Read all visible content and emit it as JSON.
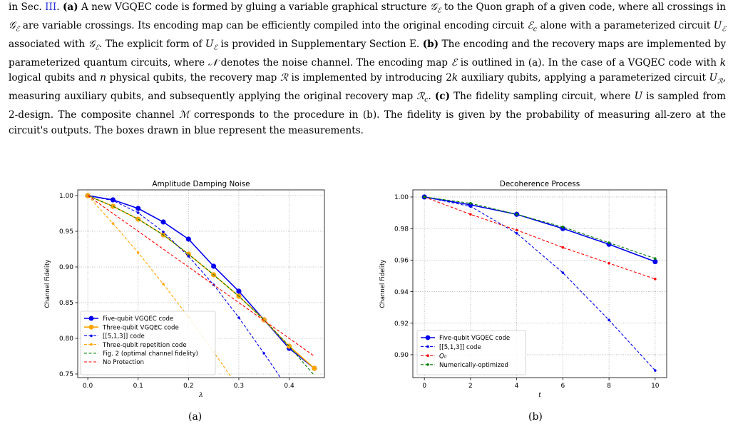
{
  "caption": {
    "segments": [
      {
        "t": "in Sec. "
      },
      {
        "t": "III",
        "ref": true
      },
      {
        "t": ". "
      },
      {
        "t": "(a)",
        "b": true
      },
      {
        "t": " A new VGQEC code is formed by gluing a variable graphical structure "
      },
      {
        "t": "𝒢",
        "i": true
      },
      {
        "t": "ℰ",
        "sub": true
      },
      {
        "t": " to the Quon graph of a given code, where all crossings in "
      },
      {
        "t": "𝒢",
        "i": true
      },
      {
        "t": "ℰ",
        "sub": true
      },
      {
        "t": " are variable crossings. Its encoding map can be efficiently compiled into the original encoding circuit "
      },
      {
        "t": "ℰ",
        "i": true
      },
      {
        "t": "c",
        "sub": true
      },
      {
        "t": " alone with a parameterized circuit "
      },
      {
        "t": "U",
        "i": true
      },
      {
        "t": "ℰ",
        "sub": true
      },
      {
        "t": " associated with "
      },
      {
        "t": "𝒢",
        "i": true
      },
      {
        "t": "ℰ",
        "sub": true
      },
      {
        "t": ". The explicit form of "
      },
      {
        "t": "U",
        "i": true
      },
      {
        "t": "ℰ",
        "sub": true
      },
      {
        "t": " is provided in Supplementary Section E. "
      },
      {
        "t": "(b)",
        "b": true
      },
      {
        "t": " The encoding and the recovery maps are implemented by parameterized quantum circuits, where "
      },
      {
        "t": "𝒩",
        "i": true
      },
      {
        "t": " denotes the noise channel. The encoding map "
      },
      {
        "t": "ℰ",
        "i": true
      },
      {
        "t": " is outlined in (a). In the case of a VGQEC code with "
      },
      {
        "t": "k",
        "i": true
      },
      {
        "t": " logical qubits and "
      },
      {
        "t": "n",
        "i": true
      },
      {
        "t": " physical qubits, the recovery map "
      },
      {
        "t": "ℛ",
        "i": true
      },
      {
        "t": " is implemented by introducing 2"
      },
      {
        "t": "k",
        "i": true
      },
      {
        "t": " auxiliary qubits, applying a parameterized circuit "
      },
      {
        "t": "U",
        "i": true
      },
      {
        "t": "ℛ",
        "sub": true
      },
      {
        "t": ", measuring auxiliary qubits, and subsequently applying the original recovery map "
      },
      {
        "t": "ℛ",
        "i": true
      },
      {
        "t": "c",
        "sub": true
      },
      {
        "t": ". "
      },
      {
        "t": "(c)",
        "b": true
      },
      {
        "t": " The fidelity sampling circuit, where "
      },
      {
        "t": "U",
        "i": true
      },
      {
        "t": " is sampled from 2-design. The composite channel "
      },
      {
        "t": "ℳ",
        "i": true
      },
      {
        "t": " corresponds to the procedure in (b). The fidelity is given by the probability of measuring all-zero at the circuit's outputs. The boxes drawn in blue represent the measurements."
      }
    ]
  },
  "colors": {
    "blue": "#0000ee",
    "orange": "#ffa500",
    "green": "#008000",
    "red": "#ff0000",
    "grid": "#b0b0b0",
    "ref": "#2a33d8"
  },
  "chart_data": [
    {
      "type": "line",
      "title": "Amplitude Damping Noise",
      "xlabel": "λ",
      "ylabel": "Channel Fidelity",
      "xlim": [
        -0.02,
        0.47
      ],
      "ylim": [
        0.745,
        1.008
      ],
      "xticks": [
        0.0,
        0.1,
        0.2,
        0.3,
        0.4
      ],
      "xtick_labels": [
        "0.0",
        "0.1",
        "0.2",
        "0.3",
        "0.4"
      ],
      "yticks": [
        0.75,
        0.8,
        0.85,
        0.9,
        0.95,
        1.0
      ],
      "ytick_labels": [
        "0.75",
        "0.80",
        "0.85",
        "0.90",
        "0.95",
        "1.00"
      ],
      "grid": true,
      "legend": "lower-left",
      "sub_label": "(a)",
      "series": [
        {
          "name": "Five-qubit VGQEC code",
          "color": "blue",
          "style": "solid",
          "marker": "big",
          "x": [
            0,
            0.05,
            0.1,
            0.15,
            0.2,
            0.25,
            0.3,
            0.35,
            0.4,
            0.45
          ],
          "y": [
            1.0,
            0.994,
            0.982,
            0.963,
            0.939,
            0.901,
            0.866,
            0.826,
            0.786,
            0.758
          ]
        },
        {
          "name": "Three-qubit VGQEC code",
          "color": "orange",
          "style": "solid",
          "marker": "big",
          "x": [
            0,
            0.05,
            0.1,
            0.15,
            0.2,
            0.25,
            0.3,
            0.35,
            0.4,
            0.45
          ],
          "y": [
            1.0,
            0.985,
            0.967,
            0.945,
            0.918,
            0.889,
            0.859,
            0.826,
            0.789,
            0.758
          ]
        },
        {
          "name": "[[5,1,3]] code",
          "color": "blue",
          "style": "dashed",
          "marker": "small",
          "x": [
            0,
            0.05,
            0.1,
            0.15,
            0.2,
            0.25,
            0.3,
            0.35,
            0.4,
            0.45
          ],
          "y": [
            1.0,
            0.993,
            0.976,
            0.949,
            0.915,
            0.875,
            0.829,
            0.779,
            0.727,
            0.67
          ]
        },
        {
          "name": "Three-qubit repetition code",
          "color": "orange",
          "style": "dashed",
          "marker": "small",
          "x": [
            0,
            0.05,
            0.1,
            0.15,
            0.2,
            0.25,
            0.3
          ],
          "y": [
            1.0,
            0.961,
            0.92,
            0.876,
            0.83,
            0.781,
            0.73
          ]
        },
        {
          "name": "Fig. 2 (optimal channel fidelity)",
          "color": "green",
          "style": "dashed",
          "marker": "none",
          "x": [
            0,
            0.05,
            0.1,
            0.15,
            0.2,
            0.25,
            0.3,
            0.35,
            0.4,
            0.45
          ],
          "y": [
            1.0,
            0.985,
            0.967,
            0.945,
            0.918,
            0.889,
            0.859,
            0.826,
            0.789,
            0.748
          ]
        },
        {
          "name": "No Protection",
          "color": "red",
          "style": "dashed",
          "marker": "none",
          "x": [
            0,
            0.05,
            0.1,
            0.15,
            0.2,
            0.25,
            0.3,
            0.35,
            0.4,
            0.45
          ],
          "y": [
            1.0,
            0.975,
            0.95,
            0.925,
            0.9,
            0.875,
            0.85,
            0.825,
            0.8,
            0.775
          ]
        }
      ]
    },
    {
      "type": "line",
      "title": "Decoherence Process",
      "xlabel": "t",
      "ylabel": "Channel Fidelity",
      "xlim": [
        -0.5,
        10.5
      ],
      "ylim": [
        0.8855,
        1.0045
      ],
      "xticks": [
        0,
        2,
        4,
        6,
        8,
        10
      ],
      "xtick_labels": [
        "0",
        "2",
        "4",
        "6",
        "8",
        "10"
      ],
      "yticks": [
        0.9,
        0.92,
        0.94,
        0.96,
        0.98,
        1.0
      ],
      "ytick_labels": [
        "0.90",
        "0.92",
        "0.94",
        "0.96",
        "0.98",
        "1.00"
      ],
      "grid": true,
      "legend": "lower-left",
      "sub_label": "(b)",
      "series": [
        {
          "name": "Five-qubit VGQEC code",
          "color": "blue",
          "style": "solid",
          "marker": "big",
          "x": [
            0,
            2,
            4,
            6,
            8,
            10
          ],
          "y": [
            1.0,
            0.995,
            0.989,
            0.98,
            0.97,
            0.959
          ]
        },
        {
          "name": "[[5,1,3]] code",
          "color": "blue",
          "style": "dashed",
          "marker": "small",
          "x": [
            0,
            2,
            4,
            6,
            8,
            10
          ],
          "y": [
            1.0,
            0.994,
            0.977,
            0.952,
            0.922,
            0.89
          ]
        },
        {
          "name": "Q₀",
          "color": "red",
          "style": "dashed",
          "marker": "small",
          "italic": true,
          "x": [
            0,
            2,
            4,
            6,
            8,
            10
          ],
          "y": [
            1.0,
            0.989,
            0.979,
            0.968,
            0.958,
            0.948
          ]
        },
        {
          "name": "Numerically-optimized",
          "color": "green",
          "style": "dashed",
          "marker": "small",
          "x": [
            0,
            2,
            4,
            6,
            8,
            10
          ],
          "y": [
            1.0,
            0.996,
            0.989,
            0.981,
            0.971,
            0.961
          ]
        }
      ]
    }
  ]
}
